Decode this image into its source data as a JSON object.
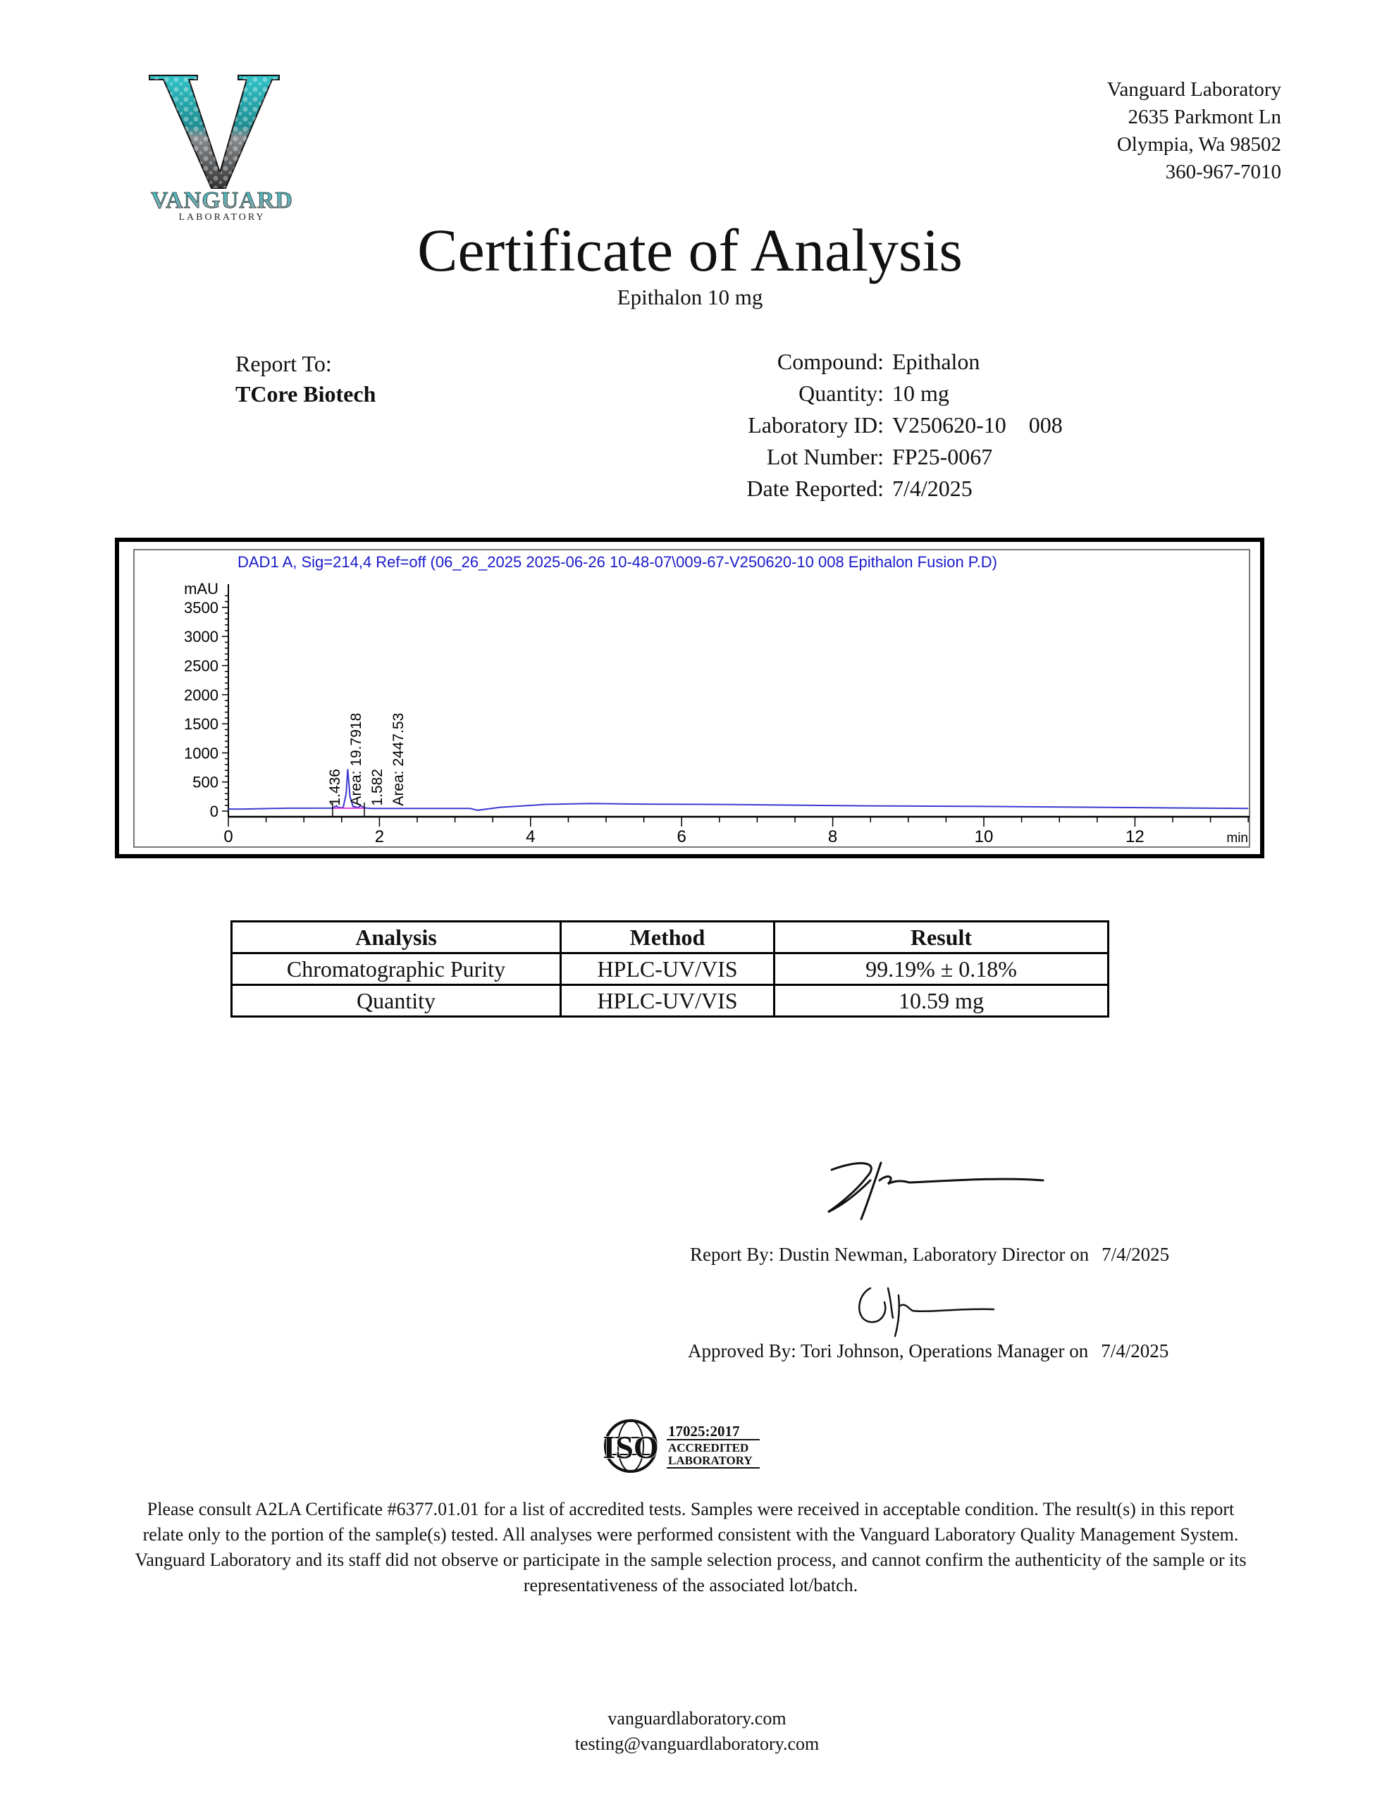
{
  "logo": {
    "brand": "VANGUARD",
    "sub": "LABORATORY",
    "colors": {
      "teal": "#2fc4c9",
      "silver": "#b9bcbf",
      "dark": "#1a1a1a"
    }
  },
  "address": {
    "name": "Vanguard Laboratory",
    "street": "2635 Parkmont Ln",
    "city": "Olympia, Wa 98502",
    "phone": "360-967-7010"
  },
  "title": "Certificate of Analysis",
  "subtitle": "Epithalon 10 mg",
  "report_to": {
    "label": "Report To:",
    "client": "TCore Biotech"
  },
  "info": [
    {
      "label": "Compound:",
      "value": "Epithalon"
    },
    {
      "label": "Quantity:",
      "value": "10 mg"
    },
    {
      "label": "Laboratory ID:",
      "value": "V250620-10    008"
    },
    {
      "label": "Lot Number:",
      "value": "FP25-0067"
    },
    {
      "label": "Date Reported:",
      "value": "7/4/2025"
    }
  ],
  "chart_data": {
    "type": "line",
    "title": "DAD1 A, Sig=214,4 Ref=off (06_26_2025 2025-06-26 10-48-07\\009-67-V250620-10 008 Epithalon Fusion P.D)",
    "xlabel": "min",
    "ylabel": "mAU",
    "xlim": [
      0,
      13.5
    ],
    "ylim": [
      0,
      3700
    ],
    "xticks": [
      "0",
      "2",
      "4",
      "6",
      "8",
      "10",
      "12"
    ],
    "yticks": [
      "0",
      "500",
      "1000",
      "1500",
      "2000",
      "2500",
      "3000",
      "3500"
    ],
    "grid": false,
    "line_color": "#3a3ad0",
    "title_color": "#1a1acc",
    "series": [
      {
        "x": [
          0,
          0.2,
          0.8,
          1.38,
          1.43,
          1.46,
          1.52,
          1.56,
          1.58,
          1.61,
          1.65,
          1.72,
          1.75,
          1.8,
          1.9,
          2.0,
          3.2,
          3.3,
          3.6,
          4.2,
          4.8,
          5.5,
          6.4,
          7.2,
          8.5,
          10.0,
          11.5,
          12.5,
          13.5
        ],
        "y": [
          35,
          35,
          50,
          52,
          90,
          60,
          60,
          300,
          720,
          250,
          80,
          60,
          95,
          55,
          45,
          45,
          45,
          15,
          65,
          115,
          130,
          120,
          115,
          105,
          90,
          80,
          65,
          55,
          45
        ]
      }
    ],
    "peaks": [
      {
        "rt": "1.436",
        "area": "Area: 19.7918"
      },
      {
        "rt": "1.582",
        "area": "Area: 2447.53"
      }
    ]
  },
  "results_table": {
    "headers": [
      "Analysis",
      "Method",
      "Result"
    ],
    "rows": [
      [
        "Chromatographic Purity",
        "HPLC-UV/VIS",
        "99.19% ± 0.18%"
      ],
      [
        "Quantity",
        "HPLC-UV/VIS",
        "10.59 mg"
      ]
    ]
  },
  "signatures": {
    "report_by": "Report By: Dustin Newman, Laboratory Director on",
    "report_date": "7/4/2025",
    "approved_by": "Approved By: Tori Johnson, Operations Manager on",
    "approved_date": "7/4/2025"
  },
  "iso": {
    "big": "ISO",
    "standard": "17025:2017",
    "line1": "ACCREDITED",
    "line2": "LABORATORY"
  },
  "disclaimer": "Please consult A2LA Certificate #6377.01.01 for a list of accredited tests. Samples were received in acceptable condition. The result(s) in this report relate only to the portion of the sample(s) tested. All analyses were performed consistent with the Vanguard Laboratory Quality Management System. Vanguard Laboratory and its staff did not observe or participate in the sample selection process, and cannot confirm the authenticity of the sample or its representativeness of the associated lot/batch.",
  "footer": {
    "website": "vanguardlaboratory.com",
    "email": "testing@vanguardlaboratory.com"
  }
}
